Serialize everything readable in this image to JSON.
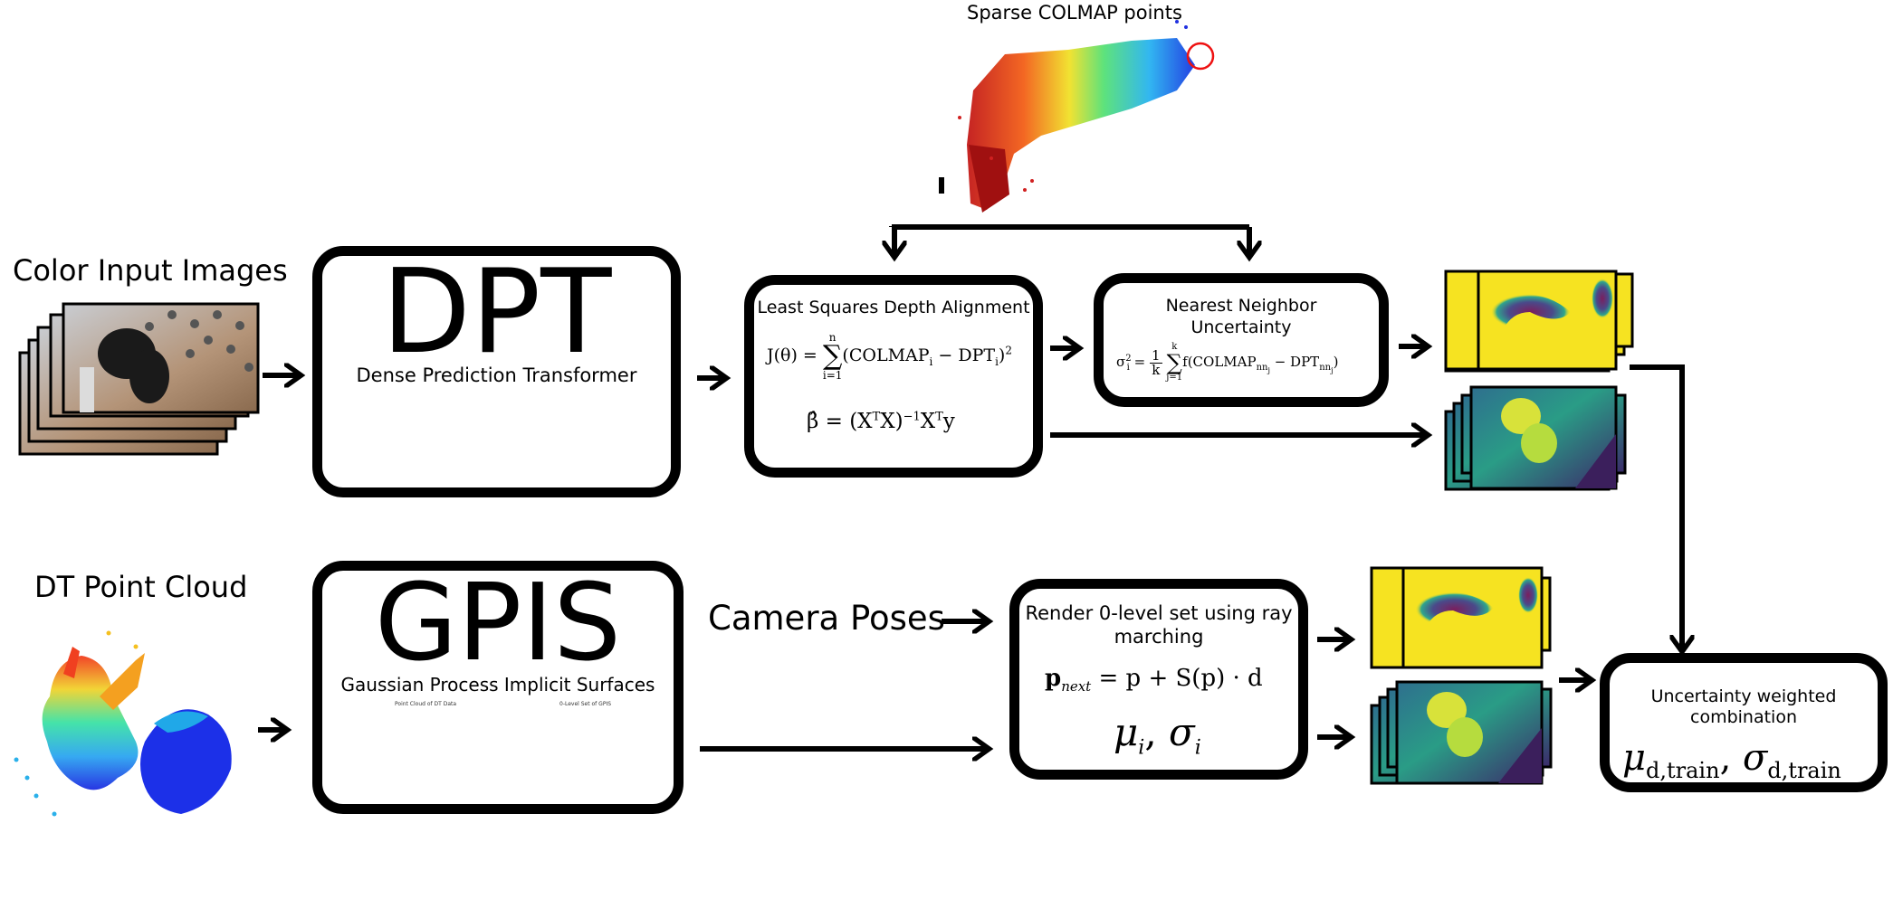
{
  "labels": {
    "colmap_points": "Sparse COLMAP points",
    "color_input": "Color Input Images",
    "dt_cloud": "DT Point Cloud",
    "camera_poses": "Camera Poses"
  },
  "dpt": {
    "title": "DPT",
    "subtitle": "Dense Prediction Transformer"
  },
  "lsq": {
    "title": "Least Squares Depth Alignment",
    "j_lhs": "J(θ) =",
    "sum_top": "n",
    "sum_bottom": "i=1",
    "j_rhs": "(COLMAP",
    "j_sub1": "i",
    "j_mid": " − DPT",
    "j_sub2": "i",
    "j_end": ")",
    "j_sq": "2",
    "beta": "β̂ = (X",
    "beta_t1": "T",
    "beta_mid": "X)",
    "beta_inv": "−1",
    "beta_x": "X",
    "beta_t2": "T",
    "beta_y": "y"
  },
  "nn": {
    "title": "Nearest Neighbor Uncertainty",
    "sigma": "σ",
    "sigma_sup": "2",
    "sigma_sub": "i",
    "eq": "=",
    "frac_n": "1",
    "frac_d": "k",
    "sum_top": "k",
    "sum_bottom": "j=1",
    "body": "f(COLMAP",
    "sub1": "nn",
    "sub1b": "j",
    "mid": " − DPT",
    "sub2": "nn",
    "sub2b": "j",
    "end": ")"
  },
  "gpis": {
    "title": "GPIS",
    "subtitle": "Gaussian Process Implicit Surfaces",
    "plot1_title": "Point Cloud of DT Data",
    "plot2_title": "0-Level Set of GPIS"
  },
  "render": {
    "title": "Render 0-level set using ray marching",
    "eq_left": "p",
    "eq_sub": "next",
    "eq_right": " = p + S(p) · d",
    "mu": "μ",
    "mu_sub": "i",
    "comma": ", ",
    "sigma": "σ",
    "sigma_sub": "i"
  },
  "combo": {
    "title": "Uncertainty weighted combination",
    "mu": "μ",
    "mu_sub": "d,train",
    "comma": ", ",
    "sigma": "σ",
    "sigma_sub": "d,train"
  },
  "colors": {
    "uncert_bg": "#f6e321",
    "uncert_blob": "#7a2e6a",
    "depth_dark": "#3a2d6e",
    "depth_mid": "#2a8f8a",
    "depth_light": "#3fc07a",
    "depth_yellow": "#cfe03a",
    "colmap_red": "#e8231a",
    "colmap_blue": "#1a44e8"
  }
}
